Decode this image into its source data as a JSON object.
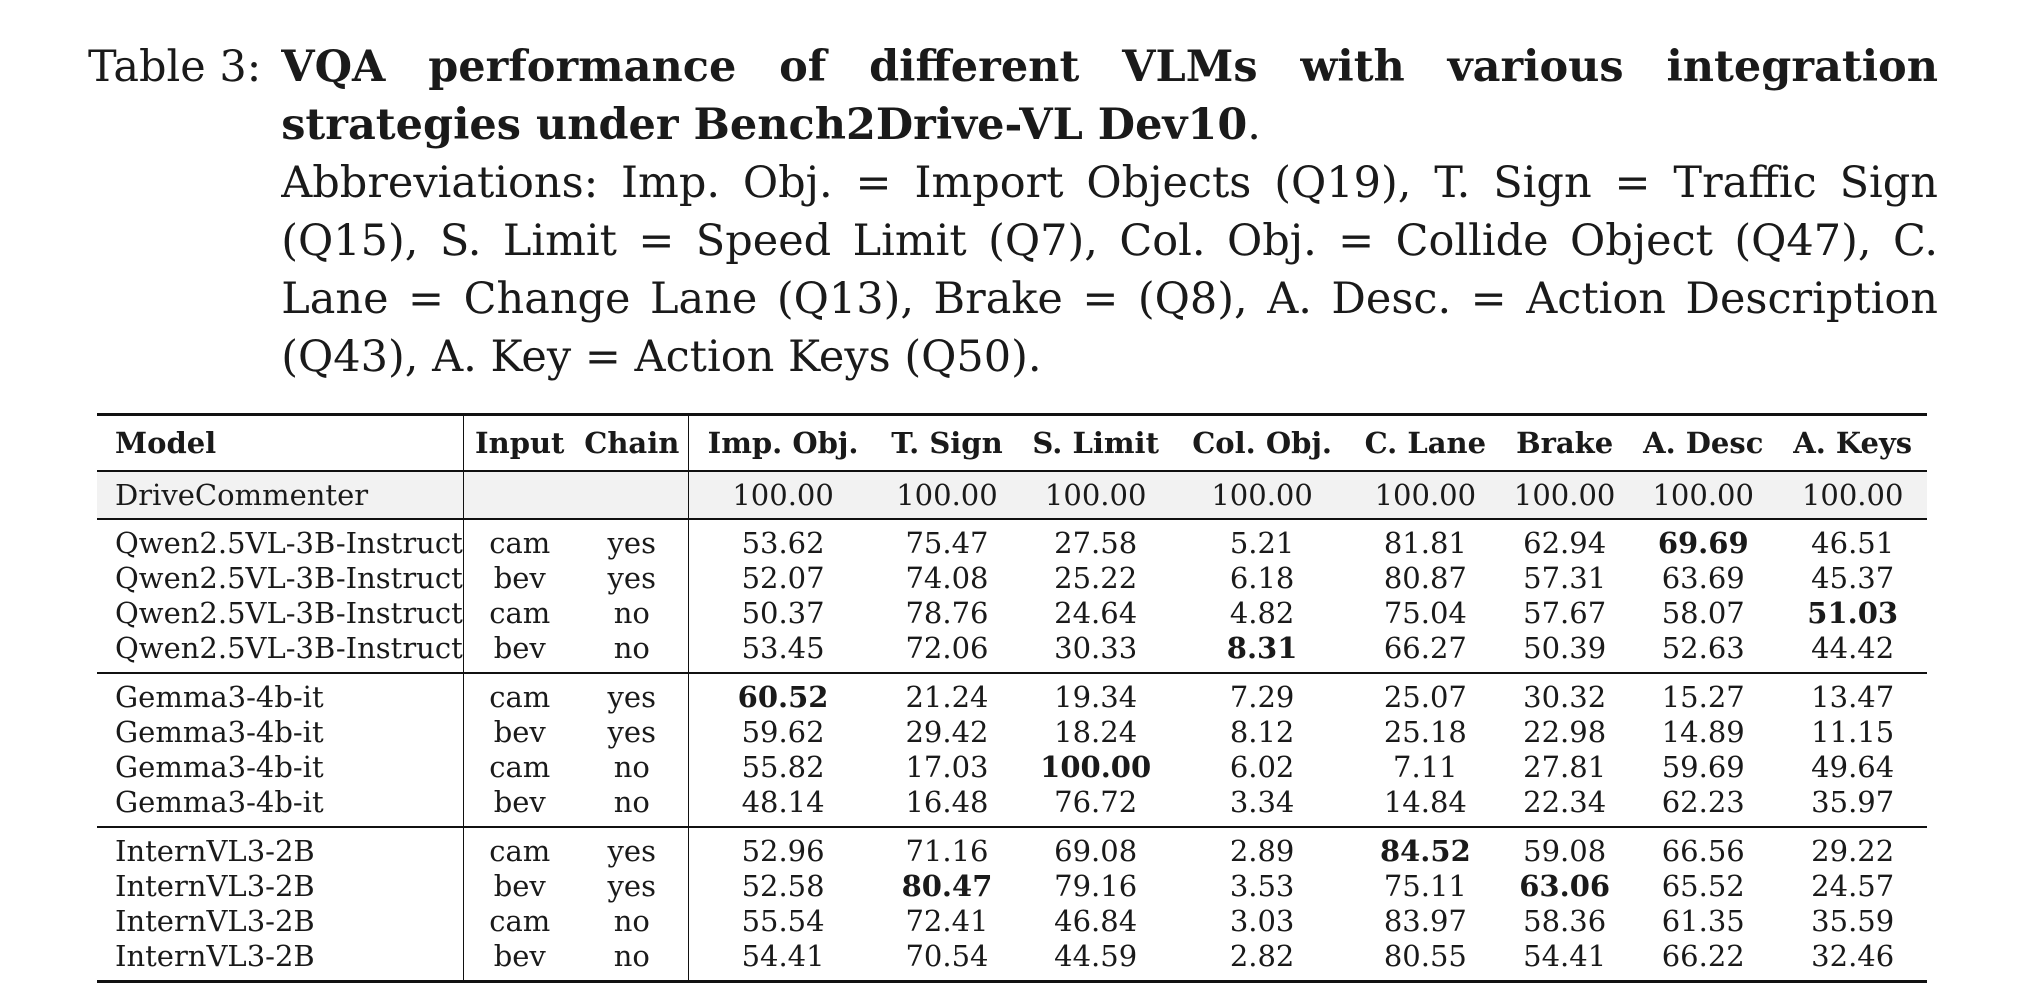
{
  "caption": {
    "label": "Table 3:",
    "title": "VQA performance of different VLMs with various integration strategies under Bench2Drive-VL Dev10",
    "title_end": ".",
    "abbreviations": "Abbreviations: Imp. Obj. = Import Objects (Q19), T. Sign = Traffic Sign (Q15), S. Limit = Speed Limit (Q7), Col. Obj. = Collide Object (Q47), C. Lane = Change Lane (Q13), Brake = (Q8), A. Desc. = Action Description (Q43), A. Key = Action Keys (Q50)."
  },
  "table": {
    "headers": [
      "Model",
      "Input",
      "Chain",
      "Imp. Obj.",
      "T. Sign",
      "S. Limit",
      "Col. Obj.",
      "C. Lane",
      "Brake",
      "A. Desc",
      "A. Keys"
    ],
    "baseline": {
      "model": "DriveCommenter",
      "input": "",
      "chain": "",
      "values": [
        "100.00",
        "100.00",
        "100.00",
        "100.00",
        "100.00",
        "100.00",
        "100.00",
        "100.00"
      ]
    },
    "groups": [
      [
        {
          "model": "Qwen2.5VL-3B-Instruct",
          "input": "cam",
          "chain": "yes",
          "values": [
            "53.62",
            "75.47",
            "27.58",
            "5.21",
            "81.81",
            "62.94",
            "69.69",
            "46.51"
          ],
          "bold": [
            6
          ]
        },
        {
          "model": "Qwen2.5VL-3B-Instruct",
          "input": "bev",
          "chain": "yes",
          "values": [
            "52.07",
            "74.08",
            "25.22",
            "6.18",
            "80.87",
            "57.31",
            "63.69",
            "45.37"
          ],
          "bold": []
        },
        {
          "model": "Qwen2.5VL-3B-Instruct",
          "input": "cam",
          "chain": "no",
          "values": [
            "50.37",
            "78.76",
            "24.64",
            "4.82",
            "75.04",
            "57.67",
            "58.07",
            "51.03"
          ],
          "bold": [
            7
          ]
        },
        {
          "model": "Qwen2.5VL-3B-Instruct",
          "input": "bev",
          "chain": "no",
          "values": [
            "53.45",
            "72.06",
            "30.33",
            "8.31",
            "66.27",
            "50.39",
            "52.63",
            "44.42"
          ],
          "bold": [
            3
          ]
        }
      ],
      [
        {
          "model": "Gemma3-4b-it",
          "input": "cam",
          "chain": "yes",
          "values": [
            "60.52",
            "21.24",
            "19.34",
            "7.29",
            "25.07",
            "30.32",
            "15.27",
            "13.47"
          ],
          "bold": [
            0
          ]
        },
        {
          "model": "Gemma3-4b-it",
          "input": "bev",
          "chain": "yes",
          "values": [
            "59.62",
            "29.42",
            "18.24",
            "8.12",
            "25.18",
            "22.98",
            "14.89",
            "11.15"
          ],
          "bold": []
        },
        {
          "model": "Gemma3-4b-it",
          "input": "cam",
          "chain": "no",
          "values": [
            "55.82",
            "17.03",
            "100.00",
            "6.02",
            "7.11",
            "27.81",
            "59.69",
            "49.64"
          ],
          "bold": [
            2
          ]
        },
        {
          "model": "Gemma3-4b-it",
          "input": "bev",
          "chain": "no",
          "values": [
            "48.14",
            "16.48",
            "76.72",
            "3.34",
            "14.84",
            "22.34",
            "62.23",
            "35.97"
          ],
          "bold": []
        }
      ],
      [
        {
          "model": "InternVL3-2B",
          "input": "cam",
          "chain": "yes",
          "values": [
            "52.96",
            "71.16",
            "69.08",
            "2.89",
            "84.52",
            "59.08",
            "66.56",
            "29.22"
          ],
          "bold": [
            4
          ]
        },
        {
          "model": "InternVL3-2B",
          "input": "bev",
          "chain": "yes",
          "values": [
            "52.58",
            "80.47",
            "79.16",
            "3.53",
            "75.11",
            "63.06",
            "65.52",
            "24.57"
          ],
          "bold": [
            1,
            5
          ]
        },
        {
          "model": "InternVL3-2B",
          "input": "cam",
          "chain": "no",
          "values": [
            "55.54",
            "72.41",
            "46.84",
            "3.03",
            "83.97",
            "58.36",
            "61.35",
            "35.59"
          ],
          "bold": []
        },
        {
          "model": "InternVL3-2B",
          "input": "bev",
          "chain": "no",
          "values": [
            "54.41",
            "70.54",
            "44.59",
            "2.82",
            "80.55",
            "54.41",
            "66.22",
            "32.46"
          ],
          "bold": []
        }
      ]
    ]
  }
}
